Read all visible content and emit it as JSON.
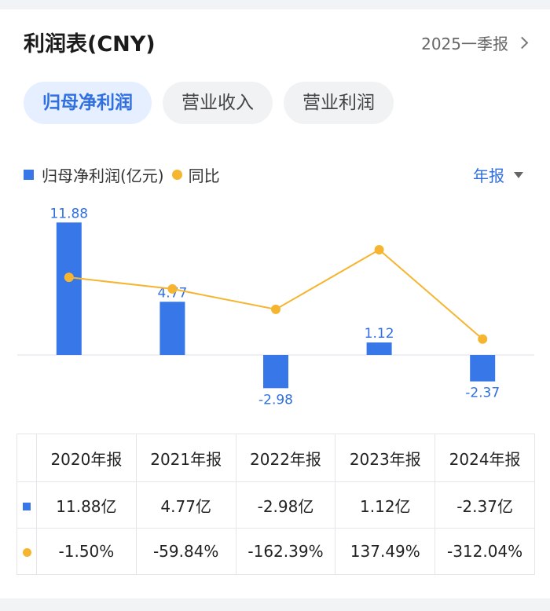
{
  "header": {
    "title": "利润表(CNY)",
    "period": "2025一季报"
  },
  "tabs": [
    {
      "label": "归母净利润",
      "active": true
    },
    {
      "label": "营业收入",
      "active": false
    },
    {
      "label": "营业利润",
      "active": false
    }
  ],
  "legend": {
    "bar_label": "归母净利润(亿元)",
    "line_label": "同比"
  },
  "frequency": "年报",
  "colors": {
    "bar": "#3777e8",
    "line": "#f5b530",
    "accent": "#2f6fe0",
    "positive": "#e24a4a",
    "negative": "#2aa36b"
  },
  "chart_data": {
    "type": "bar",
    "categories": [
      "2020年报",
      "2021年报",
      "2022年报",
      "2023年报",
      "2024年报"
    ],
    "series": [
      {
        "name": "归母净利润(亿元)",
        "type": "bar",
        "values": [
          11.88,
          4.77,
          -2.98,
          1.12,
          -2.37
        ],
        "value_labels": [
          "11.88",
          "4.77",
          "-2.98",
          "1.12",
          "-2.37"
        ]
      },
      {
        "name": "同比",
        "type": "line",
        "values": [
          -1.5,
          -59.84,
          -162.39,
          137.49,
          -312.04
        ]
      }
    ],
    "grid": false,
    "legend_position": "top-left"
  },
  "table": {
    "headers": [
      "2020年报",
      "2021年报",
      "2022年报",
      "2023年报",
      "2024年报"
    ],
    "values": [
      "11.88亿",
      "4.77亿",
      "-2.98亿",
      "1.12亿",
      "-2.37亿"
    ],
    "yoy": [
      "-1.50%",
      "-59.84%",
      "-162.39%",
      "137.49%",
      "-312.04%"
    ]
  }
}
